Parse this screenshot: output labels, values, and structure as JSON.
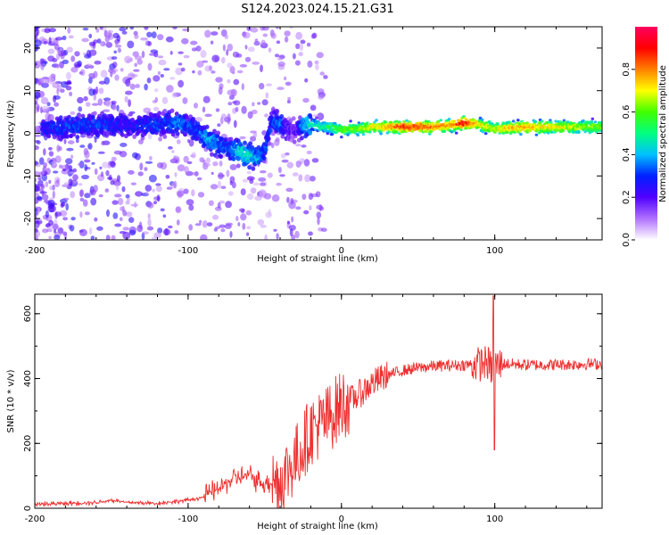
{
  "title": "S124.2023.024.15.21.G31",
  "chart_data": [
    {
      "type": "heatmap",
      "xlabel": "Height of straight line (km)",
      "ylabel": "Frequency (Hz)",
      "xlim": [
        -200,
        170
      ],
      "ylim": [
        -25,
        25
      ],
      "xticks": [
        -200,
        -100,
        0,
        100
      ],
      "yticks": [
        -20,
        -10,
        0,
        10,
        20
      ],
      "ytick_labels": [
        "-20",
        "-10",
        "0",
        "10",
        "20"
      ],
      "colorbar": {
        "label": "Normalized spectral amplitude",
        "range": [
          0,
          1
        ],
        "ticks": [
          0.0,
          0.2,
          0.4,
          0.6,
          0.8
        ],
        "tick_labels": [
          "0.0",
          "0.2",
          "0.4",
          "0.6",
          "0.8"
        ],
        "colormap": [
          "#ffffff",
          "#b070ff",
          "#5000ff",
          "#0020ff",
          "#00c0ff",
          "#00ff80",
          "#40ff00",
          "#ffff00",
          "#ff8000",
          "#ff0000",
          "#ff0060"
        ]
      },
      "ridge": {
        "x": [
          -195,
          -180,
          -160,
          -140,
          -120,
          -105,
          -95,
          -85,
          -75,
          -65,
          -55,
          -50,
          -45,
          -40,
          -35,
          -30,
          -25,
          -20,
          -10,
          0,
          10,
          20,
          30,
          40,
          50,
          60,
          70,
          80,
          90,
          100,
          110,
          120,
          140,
          170
        ],
        "frequency": [
          1,
          1.5,
          2,
          2,
          2,
          2.5,
          1,
          -2,
          -3.5,
          -4.5,
          -6,
          -4,
          3,
          2,
          1,
          0.5,
          2,
          2,
          1.5,
          1,
          1,
          1.5,
          1.5,
          1.5,
          1.5,
          1.5,
          1.8,
          2.5,
          2,
          1,
          1.2,
          1.5,
          1.5,
          1.5
        ],
        "amplitude": [
          0.25,
          0.3,
          0.3,
          0.25,
          0.3,
          0.35,
          0.3,
          0.4,
          0.3,
          0.45,
          0.4,
          0.3,
          0.3,
          0.35,
          0.2,
          0.15,
          0.4,
          0.45,
          0.5,
          0.6,
          0.6,
          0.7,
          0.75,
          0.85,
          0.85,
          0.8,
          0.75,
          0.9,
          0.7,
          0.65,
          0.75,
          0.75,
          0.7,
          0.6
        ]
      }
    },
    {
      "type": "line",
      "xlabel": "Height of straight line (km)",
      "ylabel": "SNR (10 * v/v)",
      "xlim": [
        -200,
        170
      ],
      "ylim": [
        0,
        660
      ],
      "xticks": [
        -200,
        -100,
        0,
        100
      ],
      "yticks": [
        0,
        200,
        400,
        600
      ],
      "color": "#ee3030",
      "x": [
        -200,
        -180,
        -160,
        -150,
        -140,
        -120,
        -110,
        -100,
        -90,
        -80,
        -70,
        -60,
        -50,
        -40,
        -30,
        -20,
        -10,
        0,
        10,
        20,
        30,
        40,
        50,
        60,
        70,
        80,
        90,
        95,
        98,
        100,
        105,
        110,
        120,
        130,
        140,
        150,
        160,
        170
      ],
      "snr": [
        12,
        15,
        18,
        25,
        18,
        15,
        20,
        25,
        35,
        60,
        95,
        100,
        75,
        85,
        150,
        240,
        270,
        320,
        345,
        385,
        410,
        425,
        433,
        438,
        440,
        442,
        445,
        450,
        430,
        440,
        445,
        445,
        442,
        442,
        443,
        443,
        445,
        445
      ]
    }
  ]
}
